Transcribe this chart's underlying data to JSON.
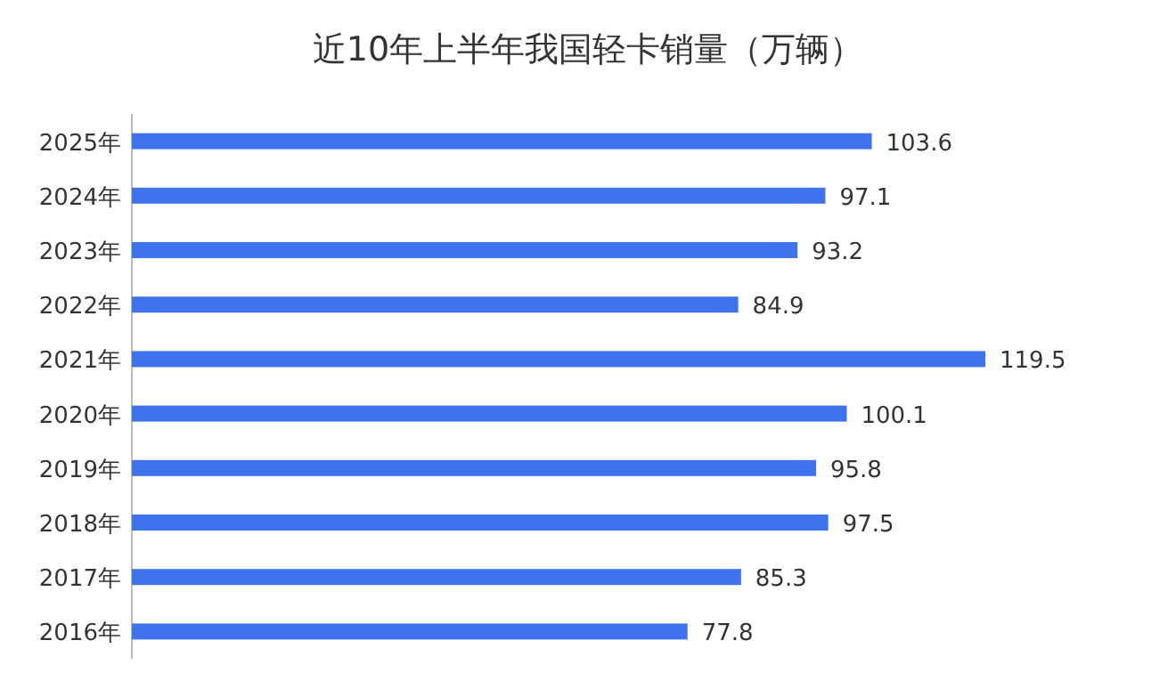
{
  "chart_data": {
    "type": "bar",
    "orientation": "horizontal",
    "title": "近10年上半年我国轻卡销量（万辆）",
    "categories": [
      "2025年",
      "2024年",
      "2023年",
      "2022年",
      "2021年",
      "2020年",
      "2019年",
      "2018年",
      "2017年",
      "2016年"
    ],
    "values": [
      103.6,
      97.1,
      93.2,
      84.9,
      119.5,
      100.1,
      95.8,
      97.5,
      85.3,
      77.8
    ],
    "color": "#3f73ee",
    "data_labels": true
  }
}
